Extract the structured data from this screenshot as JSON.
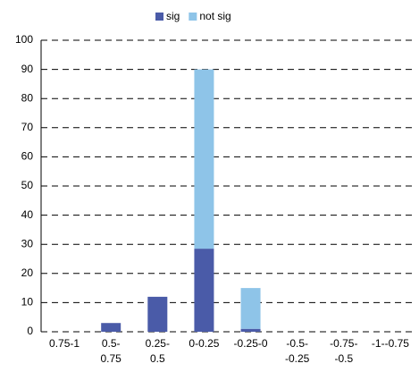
{
  "chart_data": {
    "type": "stacked_bar",
    "categories": [
      "0.75-1",
      "0.5-0.75",
      "0.25-0.5",
      "0-0.25",
      "-0.25-0",
      "-0.5--0.25",
      "-0.75--0.5",
      "-1--0.75"
    ],
    "series": [
      {
        "name": "sig",
        "color": "#4a5ba8",
        "values": [
          0,
          3,
          12,
          28.5,
          1,
          0,
          0,
          0
        ]
      },
      {
        "name": "not sig",
        "color": "#8ec4e8",
        "values": [
          0,
          0,
          0,
          61.5,
          14,
          0,
          0,
          0
        ]
      }
    ],
    "ylim": [
      0,
      100
    ],
    "yticks": [
      0,
      10,
      20,
      30,
      40,
      50,
      60,
      70,
      80,
      90,
      100
    ],
    "grid": true,
    "legend": "top"
  }
}
